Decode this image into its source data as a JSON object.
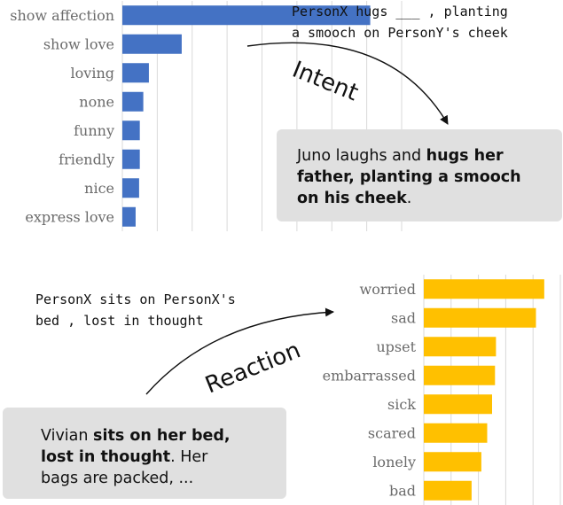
{
  "chart_data": [
    {
      "type": "bar",
      "orientation": "horizontal",
      "categories": [
        "show affection",
        "show love",
        "loving",
        "none",
        "funny",
        "friendly",
        "nice",
        "express love"
      ],
      "values": [
        0.355,
        0.085,
        0.038,
        0.03,
        0.025,
        0.025,
        0.024,
        0.019
      ],
      "xlim": [
        0,
        0.4
      ],
      "grid": true,
      "color": "#4472C4"
    },
    {
      "type": "bar",
      "orientation": "horizontal",
      "categories": [
        "worried",
        "sad",
        "upset",
        "embarrassed",
        "sick",
        "scared",
        "lonely",
        "bad"
      ],
      "values": [
        0.247,
        0.23,
        0.148,
        0.146,
        0.14,
        0.13,
        0.118,
        0.098
      ],
      "xlim": [
        0,
        0.28
      ],
      "grid": true,
      "color": "#FFC000"
    }
  ],
  "top": {
    "event_line1": "PersonX hugs ___ , planting",
    "event_line2": "a smooch on PersonY's cheek",
    "arrow_label": "Intent",
    "box_line1": "Juno laughs and ",
    "box_line1_bold": "hugs her",
    "box_line2_bold": "father, planting a smooch",
    "box_line3_bold": "on his cheek",
    "box_line3_end": "."
  },
  "bottom": {
    "event_line1": "PersonX sits on PersonX's",
    "event_line2": "bed , lost in thought",
    "arrow_label": "Reaction",
    "box_line1": "Vivian ",
    "box_line1_bold": "sits on her bed,",
    "box_line2_bold": "lost in thought",
    "box_line2_end": ". Her",
    "box_line3": "bags are packed, ..."
  },
  "colors": {
    "box_bg": "#e0e0e0",
    "grid": "#d9d9d9"
  }
}
